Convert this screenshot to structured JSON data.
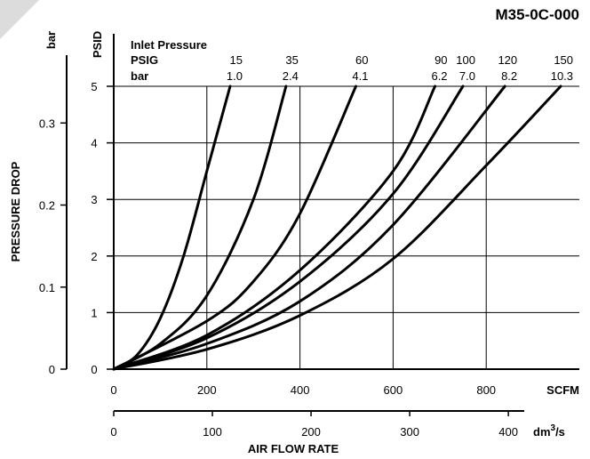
{
  "chart_data": {
    "type": "line",
    "title": "M35-0C-000",
    "ylabel": "PRESSURE DROP",
    "xlabel": "AIR FLOW RATE",
    "units": {
      "y_primary": "PSID",
      "y_secondary": "bar",
      "x_primary": "SCFM",
      "x_secondary_base": "dm",
      "x_secondary_exp": "3",
      "x_secondary_tail": "/s"
    },
    "xlim": [
      0,
      1000
    ],
    "ylim": [
      0,
      5
    ],
    "grid": true,
    "psid_ticks": [
      "0",
      "1",
      "2",
      "3",
      "4",
      "5"
    ],
    "bar_ticks": [
      {
        "value": 0,
        "label": "0"
      },
      {
        "value": 0.1,
        "label": "0.1"
      },
      {
        "value": 0.2,
        "label": "0.2"
      },
      {
        "value": 0.3,
        "label": "0.3"
      }
    ],
    "scfm_ticks": [
      {
        "value": 0,
        "label": "0"
      },
      {
        "value": 200,
        "label": "200"
      },
      {
        "value": 400,
        "label": "400"
      },
      {
        "value": 600,
        "label": "600"
      },
      {
        "value": 800,
        "label": "800"
      }
    ],
    "dm3s_ticks": [
      {
        "value": 0,
        "label": "0"
      },
      {
        "value": 100,
        "label": "100"
      },
      {
        "value": 200,
        "label": "200"
      },
      {
        "value": 300,
        "label": "300"
      },
      {
        "value": 400,
        "label": "400"
      }
    ],
    "legend": {
      "title": "Inlet Pressure",
      "row1_label": "PSIG",
      "row2_label": "bar"
    },
    "series": [
      {
        "name": "15",
        "bar": "1.0",
        "points": [
          [
            0,
            0
          ],
          [
            50,
            0.25
          ],
          [
            100,
            0.9
          ],
          [
            150,
            2.0
          ],
          [
            200,
            3.5
          ],
          [
            250,
            5.0
          ]
        ]
      },
      {
        "name": "35",
        "bar": "2.4",
        "points": [
          [
            0,
            0
          ],
          [
            100,
            0.45
          ],
          [
            200,
            1.3
          ],
          [
            300,
            3.0
          ],
          [
            370,
            5.0
          ]
        ]
      },
      {
        "name": "60",
        "bar": "4.1",
        "points": [
          [
            0,
            0
          ],
          [
            200,
            0.85
          ],
          [
            300,
            1.55
          ],
          [
            400,
            2.75
          ],
          [
            520,
            5.0
          ]
        ]
      },
      {
        "name": "90",
        "bar": "6.2",
        "points": [
          [
            0,
            0
          ],
          [
            200,
            0.6
          ],
          [
            400,
            1.75
          ],
          [
            600,
            3.5
          ],
          [
            690,
            5.0
          ]
        ]
      },
      {
        "name": "100",
        "bar": "7.0",
        "points": [
          [
            0,
            0
          ],
          [
            200,
            0.55
          ],
          [
            400,
            1.55
          ],
          [
            600,
            3.1
          ],
          [
            750,
            5.0
          ]
        ]
      },
      {
        "name": "120",
        "bar": "8.2",
        "points": [
          [
            0,
            0
          ],
          [
            200,
            0.45
          ],
          [
            400,
            1.2
          ],
          [
            600,
            2.55
          ],
          [
            840,
            5.0
          ]
        ]
      },
      {
        "name": "150",
        "bar": "10.3",
        "points": [
          [
            0,
            0
          ],
          [
            200,
            0.35
          ],
          [
            400,
            0.95
          ],
          [
            600,
            1.95
          ],
          [
            800,
            3.6
          ],
          [
            960,
            5.0
          ]
        ]
      }
    ]
  }
}
